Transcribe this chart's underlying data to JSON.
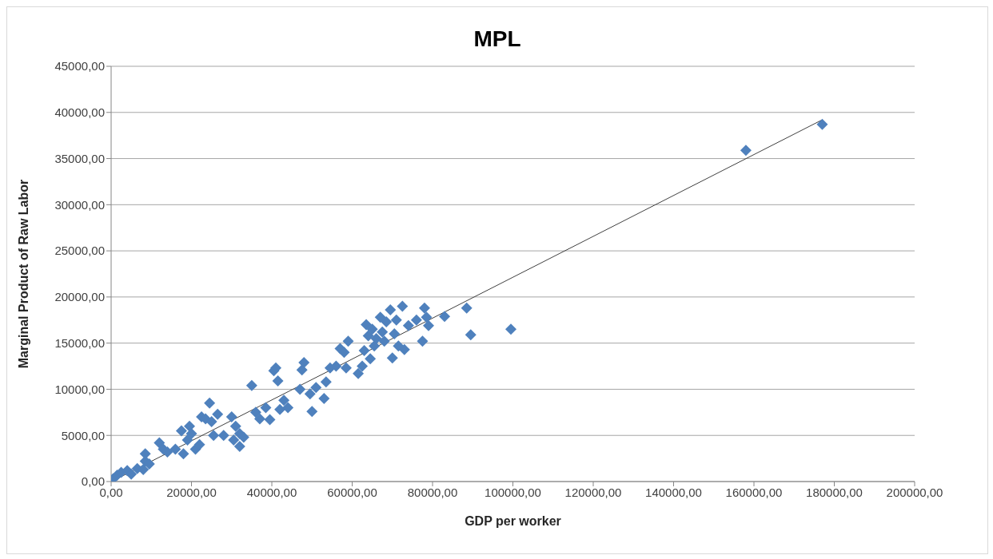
{
  "chart_data": {
    "type": "scatter",
    "title": "MPL",
    "xlabel": "GDP per worker",
    "ylabel": "Marginal Product of Raw Labor",
    "xlim": [
      0,
      200000
    ],
    "ylim": [
      0,
      45000
    ],
    "xticks": [
      {
        "value": 0,
        "label": "0,00"
      },
      {
        "value": 20000,
        "label": "20000,00"
      },
      {
        "value": 40000,
        "label": "40000,00"
      },
      {
        "value": 60000,
        "label": "60000,00"
      },
      {
        "value": 80000,
        "label": "80000,00"
      },
      {
        "value": 100000,
        "label": "100000,00"
      },
      {
        "value": 120000,
        "label": "120000,00"
      },
      {
        "value": 140000,
        "label": "140000,00"
      },
      {
        "value": 160000,
        "label": "160000,00"
      },
      {
        "value": 180000,
        "label": "180000,00"
      },
      {
        "value": 200000,
        "label": "200000,00"
      }
    ],
    "yticks": [
      {
        "value": 0,
        "label": "0,00"
      },
      {
        "value": 5000,
        "label": "5000,00"
      },
      {
        "value": 10000,
        "label": "10000,00"
      },
      {
        "value": 15000,
        "label": "15000,00"
      },
      {
        "value": 20000,
        "label": "20000,00"
      },
      {
        "value": 25000,
        "label": "25000,00"
      },
      {
        "value": 30000,
        "label": "30000,00"
      },
      {
        "value": 35000,
        "label": "35000,00"
      },
      {
        "value": 40000,
        "label": "40000,00"
      },
      {
        "value": 45000,
        "label": "45000,00"
      }
    ],
    "grid": "y",
    "legend": false,
    "series": [
      {
        "marker": "diamond",
        "color": "#4f81bd",
        "x": [
          500,
          1500,
          2500,
          4000,
          5000,
          6500,
          8000,
          8500,
          8500,
          9500,
          12000,
          13000,
          14000,
          16000,
          17500,
          18000,
          19000,
          19500,
          20000,
          21000,
          22000,
          22500,
          23500,
          24500,
          25000,
          25500,
          26500,
          28000,
          30000,
          30500,
          31000,
          32000,
          32000,
          33000,
          35000,
          36000,
          37000,
          38500,
          39500,
          40500,
          41000,
          41500,
          42000,
          43000,
          44000,
          47000,
          47500,
          48000,
          49500,
          50000,
          51000,
          53000,
          53500,
          54500,
          56000,
          57000,
          58000,
          58500,
          59000,
          61500,
          62500,
          63000,
          63500,
          64000,
          64500,
          65000,
          65500,
          66000,
          67000,
          67500,
          68000,
          68500,
          69500,
          70000,
          70500,
          71000,
          71500,
          72500,
          73000,
          74000,
          76000,
          77500,
          78000,
          78500,
          79000,
          83000,
          88500,
          89500,
          99500,
          158000,
          177000
        ],
        "values": [
          300,
          700,
          1000,
          1200,
          800,
          1400,
          1300,
          2200,
          3000,
          1900,
          4200,
          3500,
          3200,
          3500,
          5500,
          3000,
          4500,
          6000,
          5200,
          3500,
          4000,
          7000,
          6800,
          8500,
          6500,
          5000,
          7300,
          5000,
          7000,
          4500,
          6000,
          5200,
          3800,
          4800,
          10400,
          7500,
          6800,
          8000,
          6700,
          12000,
          12300,
          10900,
          7800,
          8800,
          8000,
          10000,
          12100,
          12900,
          9500,
          7600,
          10200,
          9000,
          10800,
          12300,
          12500,
          14400,
          14000,
          12300,
          15200,
          11700,
          12500,
          14200,
          17000,
          15800,
          13300,
          16500,
          14700,
          15500,
          17800,
          16200,
          15200,
          17300,
          18600,
          13400,
          16000,
          17500,
          14700,
          19000,
          14300,
          16900,
          17500,
          15200,
          18800,
          17800,
          16900,
          17900,
          18800,
          15900,
          16500,
          35900,
          38700
        ]
      },
      {
        "type": "line",
        "marker": "none",
        "color": "#404040",
        "x": [
          1000,
          177000
        ],
        "values": [
          200,
          39200
        ]
      }
    ]
  }
}
